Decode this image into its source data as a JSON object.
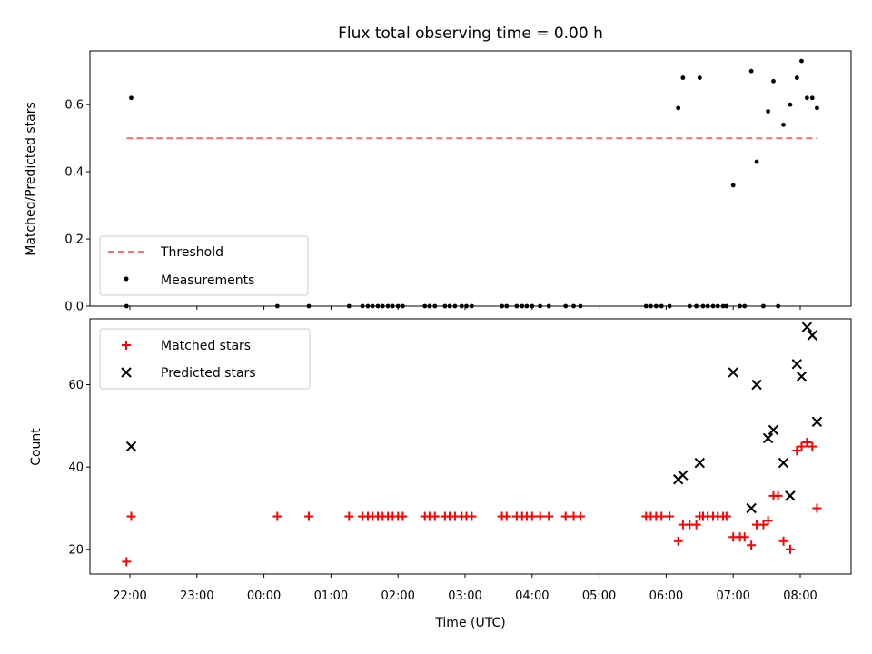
{
  "chart_data": {
    "title": "Flux total observing time = 0.00 h",
    "xlabel": "Time (UTC)",
    "x_ticks": [
      "22:00",
      "23:00",
      "00:00",
      "01:00",
      "02:00",
      "03:00",
      "04:00",
      "05:00",
      "06:00",
      "07:00",
      "08:00"
    ],
    "x_units": "hours relative to 22:00 UTC",
    "xlim": [
      -0.6,
      10.75
    ],
    "panels": [
      {
        "type": "scatter",
        "ylabel": "Matched/Predicted stars",
        "ylim": [
          0,
          0.76
        ],
        "y_ticks": [
          0.0,
          0.2,
          0.4,
          0.6
        ],
        "y_tick_labels": [
          "0.0",
          "0.2",
          "0.4",
          "0.6"
        ],
        "legend_placement": "lower-left",
        "threshold": {
          "name": "Threshold",
          "value": 0.5,
          "x_range": [
            -0.05,
            10.25
          ],
          "color": "#ff7070"
        },
        "series": [
          {
            "name": "Measurements",
            "color": "#000000",
            "marker": "dot",
            "points": [
              [
                -0.05,
                0.0
              ],
              [
                0.02,
                0.62
              ],
              [
                2.2,
                0.0
              ],
              [
                2.67,
                0.0
              ],
              [
                3.27,
                0.0
              ],
              [
                3.47,
                0.0
              ],
              [
                3.55,
                0.0
              ],
              [
                3.62,
                0.0
              ],
              [
                3.7,
                0.0
              ],
              [
                3.77,
                0.0
              ],
              [
                3.85,
                0.0
              ],
              [
                3.92,
                0.0
              ],
              [
                4.0,
                0.0
              ],
              [
                4.07,
                0.0
              ],
              [
                4.4,
                0.0
              ],
              [
                4.47,
                0.0
              ],
              [
                4.55,
                0.0
              ],
              [
                4.7,
                0.0
              ],
              [
                4.77,
                0.0
              ],
              [
                4.85,
                0.0
              ],
              [
                4.95,
                0.0
              ],
              [
                5.02,
                0.0
              ],
              [
                5.1,
                0.0
              ],
              [
                5.55,
                0.0
              ],
              [
                5.62,
                0.0
              ],
              [
                5.77,
                0.0
              ],
              [
                5.85,
                0.0
              ],
              [
                5.92,
                0.0
              ],
              [
                6.0,
                0.0
              ],
              [
                6.12,
                0.0
              ],
              [
                6.25,
                0.0
              ],
              [
                6.5,
                0.0
              ],
              [
                6.62,
                0.0
              ],
              [
                6.72,
                0.0
              ],
              [
                7.7,
                0.0
              ],
              [
                7.77,
                0.0
              ],
              [
                7.85,
                0.0
              ],
              [
                7.93,
                0.0
              ],
              [
                8.05,
                0.0
              ],
              [
                8.18,
                0.59
              ],
              [
                8.25,
                0.68
              ],
              [
                8.35,
                0.0
              ],
              [
                8.45,
                0.0
              ],
              [
                8.5,
                0.68
              ],
              [
                8.55,
                0.0
              ],
              [
                8.62,
                0.0
              ],
              [
                8.7,
                0.0
              ],
              [
                8.77,
                0.0
              ],
              [
                8.85,
                0.0
              ],
              [
                8.9,
                0.0
              ],
              [
                9.0,
                0.36
              ],
              [
                9.1,
                0.0
              ],
              [
                9.17,
                0.0
              ],
              [
                9.27,
                0.7
              ],
              [
                9.35,
                0.43
              ],
              [
                9.45,
                0.0
              ],
              [
                9.52,
                0.58
              ],
              [
                9.6,
                0.67
              ],
              [
                9.67,
                0.0
              ],
              [
                9.75,
                0.54
              ],
              [
                9.85,
                0.6
              ],
              [
                9.95,
                0.68
              ],
              [
                10.02,
                0.73
              ],
              [
                10.1,
                0.62
              ],
              [
                10.18,
                0.62
              ],
              [
                10.25,
                0.59
              ]
            ]
          }
        ]
      },
      {
        "type": "scatter",
        "ylabel": "Count",
        "ylim": [
          14,
          76
        ],
        "y_ticks": [
          20,
          40,
          60
        ],
        "y_tick_labels": [
          "20",
          "40",
          "60"
        ],
        "legend_placement": "upper-left",
        "series": [
          {
            "name": "Matched stars",
            "color": "#ff0000",
            "marker": "plus",
            "points": [
              [
                -0.05,
                17
              ],
              [
                0.02,
                28
              ],
              [
                2.2,
                28
              ],
              [
                2.67,
                28
              ],
              [
                3.27,
                28
              ],
              [
                3.47,
                28
              ],
              [
                3.55,
                28
              ],
              [
                3.62,
                28
              ],
              [
                3.7,
                28
              ],
              [
                3.77,
                28
              ],
              [
                3.85,
                28
              ],
              [
                3.92,
                28
              ],
              [
                4.0,
                28
              ],
              [
                4.07,
                28
              ],
              [
                4.4,
                28
              ],
              [
                4.47,
                28
              ],
              [
                4.55,
                28
              ],
              [
                4.7,
                28
              ],
              [
                4.77,
                28
              ],
              [
                4.85,
                28
              ],
              [
                4.95,
                28
              ],
              [
                5.02,
                28
              ],
              [
                5.1,
                28
              ],
              [
                5.55,
                28
              ],
              [
                5.62,
                28
              ],
              [
                5.77,
                28
              ],
              [
                5.85,
                28
              ],
              [
                5.92,
                28
              ],
              [
                6.0,
                28
              ],
              [
                6.12,
                28
              ],
              [
                6.25,
                28
              ],
              [
                6.5,
                28
              ],
              [
                6.62,
                28
              ],
              [
                6.72,
                28
              ],
              [
                7.7,
                28
              ],
              [
                7.77,
                28
              ],
              [
                7.85,
                28
              ],
              [
                7.93,
                28
              ],
              [
                8.05,
                28
              ],
              [
                8.18,
                22
              ],
              [
                8.25,
                26
              ],
              [
                8.35,
                26
              ],
              [
                8.45,
                26
              ],
              [
                8.5,
                28
              ],
              [
                8.55,
                28
              ],
              [
                8.62,
                28
              ],
              [
                8.7,
                28
              ],
              [
                8.77,
                28
              ],
              [
                8.85,
                28
              ],
              [
                8.9,
                28
              ],
              [
                9.0,
                23
              ],
              [
                9.1,
                23
              ],
              [
                9.17,
                23
              ],
              [
                9.27,
                21
              ],
              [
                9.35,
                26
              ],
              [
                9.45,
                26
              ],
              [
                9.52,
                27
              ],
              [
                9.6,
                33
              ],
              [
                9.67,
                33
              ],
              [
                9.75,
                22
              ],
              [
                9.85,
                20
              ],
              [
                9.95,
                44
              ],
              [
                10.02,
                45
              ],
              [
                10.1,
                46
              ],
              [
                10.18,
                45
              ],
              [
                10.25,
                30
              ]
            ]
          },
          {
            "name": "Predicted stars",
            "color": "#000000",
            "marker": "x",
            "points": [
              [
                0.02,
                45
              ],
              [
                8.18,
                37
              ],
              [
                8.25,
                38
              ],
              [
                8.5,
                41
              ],
              [
                9.0,
                63
              ],
              [
                9.27,
                30
              ],
              [
                9.35,
                60
              ],
              [
                9.52,
                47
              ],
              [
                9.6,
                49
              ],
              [
                9.75,
                41
              ],
              [
                9.85,
                33
              ],
              [
                9.95,
                65
              ],
              [
                10.02,
                62
              ],
              [
                10.1,
                74
              ],
              [
                10.18,
                72
              ],
              [
                10.25,
                51
              ]
            ]
          }
        ]
      }
    ]
  }
}
